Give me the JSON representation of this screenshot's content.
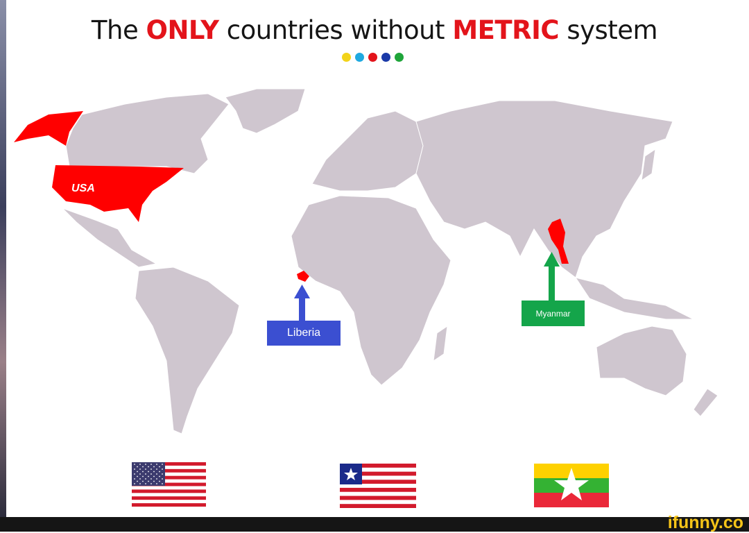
{
  "title": {
    "part1": "The ",
    "highlight1": "ONLY",
    "part2": " countries without ",
    "highlight2": "METRIC",
    "part3": " system"
  },
  "decor_dots": [
    "#f2d31a",
    "#1fa9e0",
    "#e3141b",
    "#1a3aa8",
    "#1fa53a"
  ],
  "countries": [
    {
      "name": "USA",
      "label": "USA",
      "color": "#ff0000"
    },
    {
      "name": "Liberia",
      "label": "Liberia",
      "label_color": "#3b4fd1"
    },
    {
      "name": "Myanmar",
      "label": "Myanmar",
      "label_color": "#14a54a"
    }
  ],
  "colors": {
    "land": "#cfc6cf",
    "highlight": "#ff0000",
    "ocean": "#ffffff"
  },
  "flags": [
    "usa-flag",
    "liberia-flag",
    "myanmar-flag"
  ],
  "watermark": "ifunny.co"
}
